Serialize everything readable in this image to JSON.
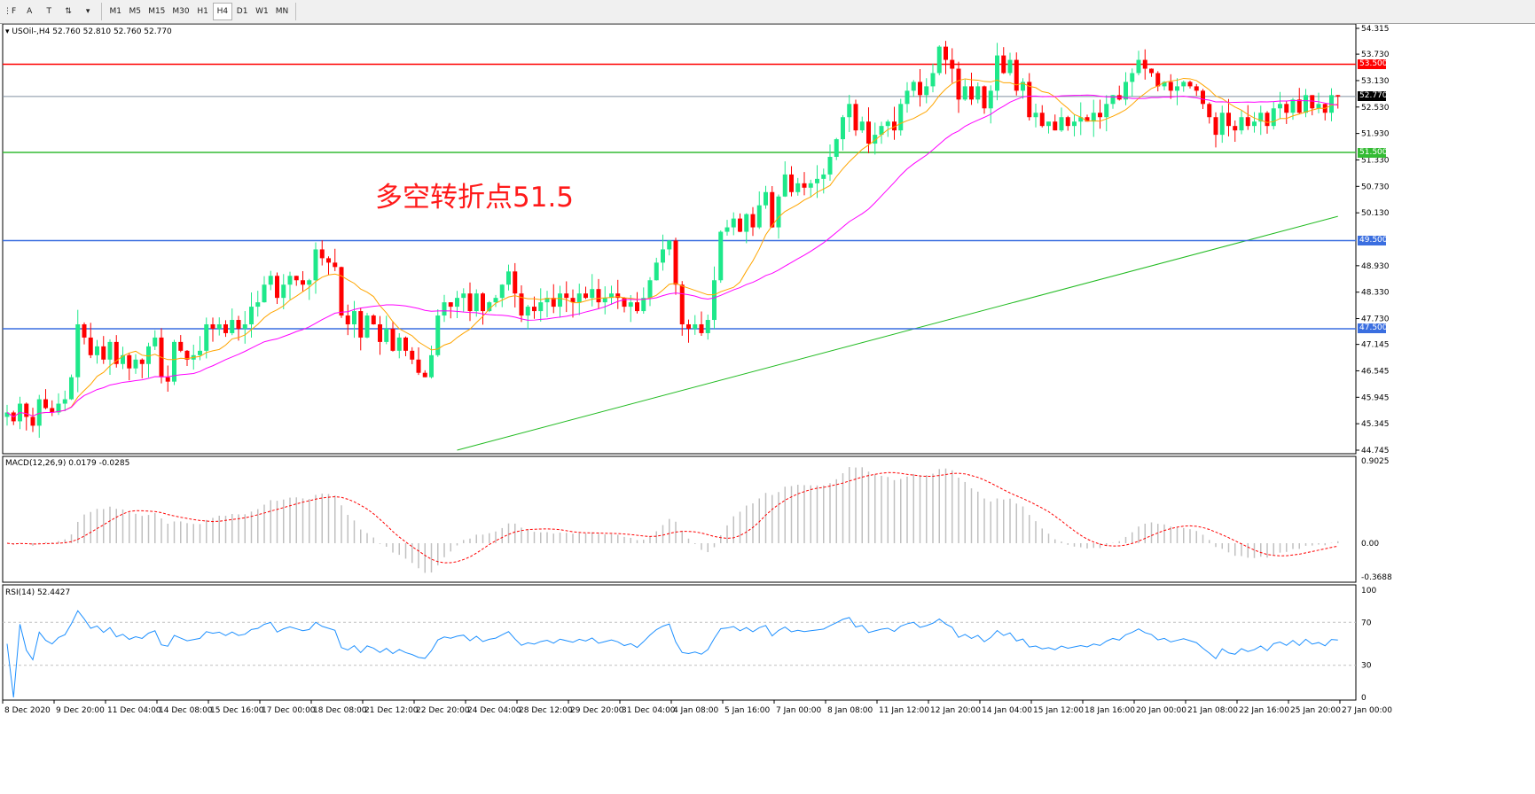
{
  "toolbar": {
    "tools": [
      {
        "name": "fibo-tool-icon",
        "glyph": "⋮F"
      },
      {
        "name": "text-tool-icon",
        "glyph": "A"
      },
      {
        "name": "text-label-tool-icon",
        "glyph": "T"
      },
      {
        "name": "arrows-tool-icon",
        "glyph": "⇅"
      }
    ],
    "timeframes": [
      "M1",
      "M5",
      "M15",
      "M30",
      "H1",
      "H4",
      "D1",
      "W1",
      "MN"
    ],
    "active_timeframe": "H4"
  },
  "main": {
    "header": "USOil-,H4  52.760 52.810 52.760 52.770",
    "annotation": "多空转折点51.5",
    "price_ticks": [
      "54.315",
      "53.730",
      "53.130",
      "52.530",
      "51.930",
      "51.330",
      "50.730",
      "50.130",
      "48.930",
      "48.330",
      "47.730",
      "47.145",
      "46.545",
      "45.945",
      "45.345",
      "44.745"
    ],
    "price_range": [
      44.745,
      54.315
    ],
    "hlines": [
      {
        "price": 53.5,
        "label": "53.500",
        "color": "#ff0000"
      },
      {
        "price": 51.5,
        "label": "51.500",
        "color": "#33bb33"
      },
      {
        "price": 49.5,
        "label": "49.500",
        "color": "#3a6ee0"
      },
      {
        "price": 47.5,
        "label": "47.500",
        "color": "#3a6ee0"
      }
    ],
    "bid": {
      "price": 52.77,
      "label": "52.770",
      "color": "#000000"
    },
    "colors": {
      "bull": "#1ee88a",
      "bear": "#ff0000",
      "ma_fast": "#ffa500",
      "ma_mid": "#ff00ff",
      "ma_slow": "#22bb22"
    },
    "ma_slow_line": {
      "from_time": "22 Dec 20:00",
      "from": 44.745,
      "to_time": "27 Jan 00:00",
      "to": 50.05
    },
    "closes": [
      45.6,
      45.4,
      45.8,
      45.5,
      45.3,
      45.9,
      45.7,
      45.6,
      45.8,
      45.9,
      46.4,
      47.6,
      47.3,
      46.9,
      47.1,
      46.8,
      47.2,
      46.7,
      46.9,
      46.6,
      46.8,
      46.7,
      47.1,
      47.3,
      46.4,
      46.3,
      47.2,
      47.0,
      46.8,
      46.9,
      47.0,
      47.6,
      47.5,
      47.6,
      47.4,
      47.7,
      47.5,
      47.6,
      48.0,
      48.1,
      48.5,
      48.7,
      48.2,
      48.5,
      48.7,
      48.6,
      48.5,
      48.6,
      49.3,
      49.1,
      49.0,
      48.9,
      47.8,
      47.6,
      47.9,
      47.3,
      47.8,
      47.6,
      47.2,
      47.5,
      47.0,
      47.3,
      47.0,
      46.8,
      46.5,
      46.4,
      46.9,
      47.8,
      48.1,
      48.0,
      48.2,
      48.3,
      47.9,
      48.3,
      47.9,
      48.1,
      48.2,
      48.5,
      48.8,
      48.3,
      47.8,
      48.0,
      47.9,
      48.1,
      48.2,
      48.0,
      48.3,
      48.2,
      48.1,
      48.3,
      48.2,
      48.4,
      48.1,
      48.2,
      48.3,
      48.2,
      48.0,
      48.1,
      47.9,
      48.2,
      48.6,
      49.0,
      49.3,
      49.5,
      48.5,
      47.6,
      47.5,
      47.6,
      47.4,
      47.7,
      48.6,
      49.7,
      49.8,
      50.0,
      49.7,
      50.1,
      49.8,
      50.3,
      50.6,
      49.8,
      50.5,
      51.0,
      50.6,
      50.8,
      50.7,
      50.8,
      50.9,
      51.0,
      51.4,
      51.8,
      52.3,
      52.6,
      52.0,
      52.2,
      51.7,
      51.9,
      52.1,
      52.2,
      52.0,
      52.6,
      52.9,
      53.1,
      52.8,
      53.0,
      53.3,
      53.9,
      53.6,
      53.4,
      52.7,
      53.0,
      52.7,
      53.0,
      52.5,
      52.9,
      53.7,
      53.3,
      53.6,
      52.9,
      53.1,
      52.3,
      52.4,
      52.1,
      52.2,
      52.0,
      52.3,
      52.1,
      52.2,
      52.3,
      52.2,
      52.4,
      52.3,
      52.6,
      52.8,
      52.7,
      53.1,
      53.3,
      53.6,
      53.4,
      53.3,
      53.0,
      53.1,
      52.9,
      53.0,
      53.1,
      53.0,
      52.9,
      52.6,
      52.3,
      51.9,
      52.4,
      52.1,
      52.0,
      52.3,
      52.1,
      52.2,
      52.4,
      52.1,
      52.5,
      52.6,
      52.4,
      52.7,
      52.4,
      52.8,
      52.5,
      52.6,
      52.4,
      52.8,
      52.77
    ]
  },
  "macd": {
    "header": "MACD(12,26,9) 0.0179 -0.0285",
    "ticks": [
      "0.9025",
      "0.00",
      "-0.3688"
    ],
    "range": [
      -0.3688,
      0.9025
    ],
    "hist_color": "#c0c0c0",
    "signal_color": "#ff0000"
  },
  "rsi": {
    "header": "RSI(14) 52.4427",
    "ticks": [
      "100",
      "70",
      "30",
      "0"
    ],
    "levels": [
      70,
      30
    ],
    "color": "#1e90ff"
  },
  "time_axis": [
    "8 Dec 2020",
    "9 Dec 20:00",
    "11 Dec 04:00",
    "14 Dec 08:00",
    "15 Dec 16:00",
    "17 Dec 00:00",
    "18 Dec 08:00",
    "21 Dec 12:00",
    "22 Dec 20:00",
    "24 Dec 04:00",
    "28 Dec 12:00",
    "29 Dec 20:00",
    "31 Dec 04:00",
    "4 Jan 08:00",
    "5 Jan 16:00",
    "7 Jan 00:00",
    "8 Jan 08:00",
    "11 Jan 12:00",
    "12 Jan 20:00",
    "14 Jan 04:00",
    "15 Jan 12:00",
    "18 Jan 16:00",
    "20 Jan 00:00",
    "21 Jan 08:00",
    "22 Jan 16:00",
    "25 Jan 20:00",
    "27 Jan 00:00"
  ]
}
